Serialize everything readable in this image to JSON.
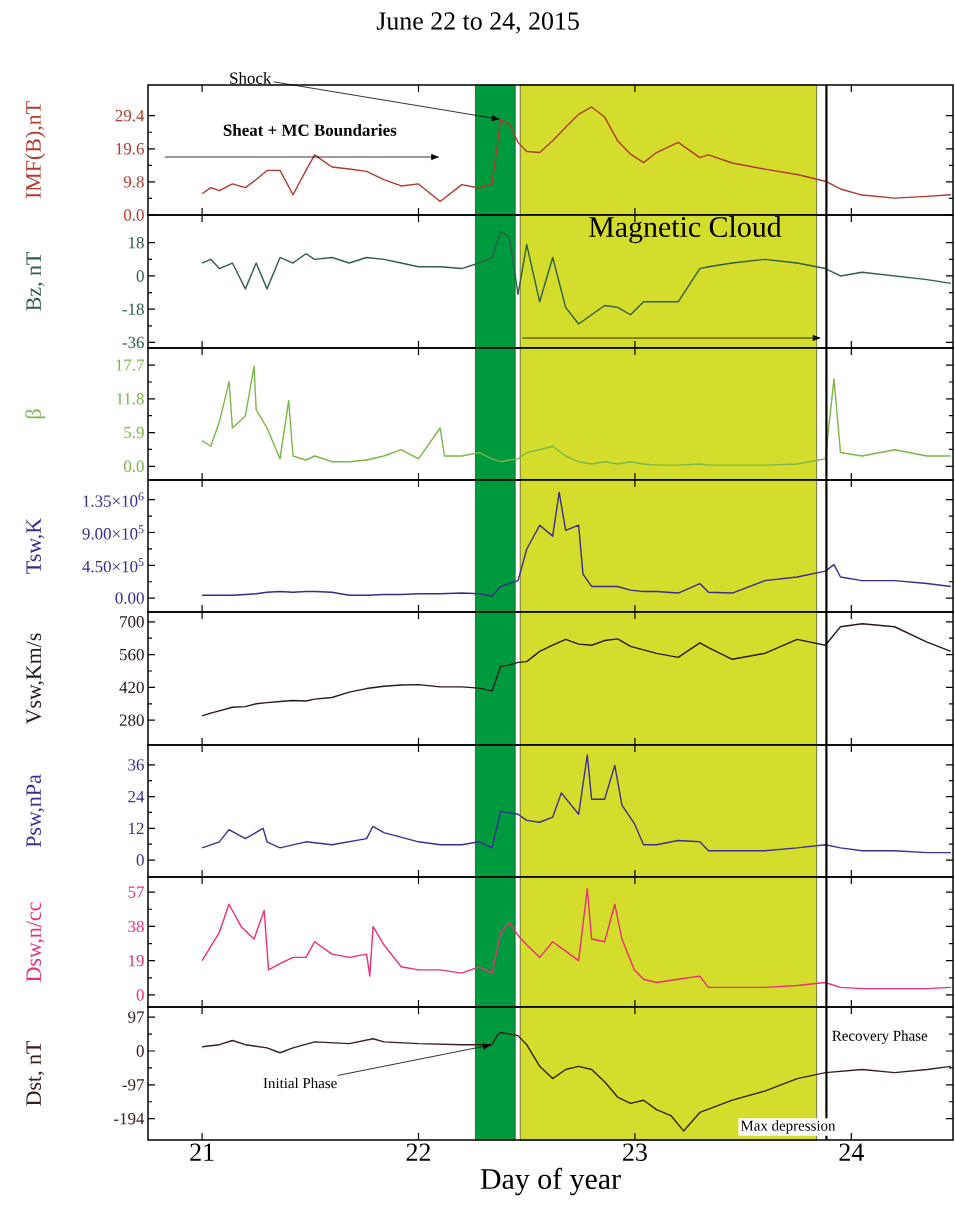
{
  "chart_data": [
    {
      "type": "line",
      "title": "June 22 to 24, 2015",
      "ylabel": "IMF(B),nT",
      "xlim": [
        20.75,
        24.47
      ],
      "xticks": [
        21,
        22,
        23,
        24
      ],
      "ylim": [
        0,
        38.5
      ],
      "yticks": [
        {
          "value": 0,
          "label": "0.0"
        },
        9.8,
        19.6,
        29.4
      ],
      "tick_labels": "y",
      "x": [
        21.0,
        21.04,
        21.08,
        21.14,
        21.2,
        21.25,
        21.3,
        21.36,
        21.42,
        21.48,
        21.52,
        21.6,
        21.68,
        21.76,
        21.84,
        21.92,
        22.0,
        22.1,
        22.2,
        22.28,
        22.34,
        22.38,
        22.42,
        22.46,
        22.5,
        22.56,
        22.62,
        22.68,
        22.74,
        22.8,
        22.86,
        22.92,
        22.98,
        23.04,
        23.1,
        23.2,
        23.3,
        23.34,
        23.45,
        23.6,
        23.75,
        23.88,
        23.95,
        24.05,
        24.2,
        24.35,
        24.46
      ],
      "series": [
        {
          "color": "#b03a2e",
          "values": [
            6.3,
            8.1,
            7.2,
            9.2,
            8.1,
            10.5,
            13.2,
            13.2,
            6.0,
            13.2,
            17.8,
            14.2,
            13.6,
            12.9,
            10.5,
            8.6,
            9.2,
            4.0,
            9.0,
            8.0,
            9.2,
            28.3,
            27.0,
            21.5,
            18.8,
            18.5,
            22.0,
            26.0,
            29.8,
            32.0,
            29.0,
            22.0,
            18.0,
            15.5,
            18.5,
            21.5,
            17.0,
            17.8,
            15.4,
            13.6,
            12.0,
            10.0,
            7.7,
            5.9,
            5.0,
            5.5,
            6.0
          ]
        }
      ],
      "bands": [
        {
          "axis": "x",
          "from": 22.263,
          "to": 22.447,
          "color": "#009a3e"
        },
        {
          "axis": "x",
          "from": 22.47,
          "to": 23.84,
          "color": "#d4dc2c"
        }
      ],
      "ref_lines": [
        {
          "axis": "x",
          "value": 23.885,
          "color": "#000000"
        }
      ],
      "annotations": [
        {
          "text": "Shock",
          "x": 22.38,
          "y": 28.3
        },
        "Sheat + MC Boundaries"
      ]
    },
    {
      "type": "line",
      "ylabel": "Bz, nT",
      "xlim": [
        20.75,
        24.47
      ],
      "xticks": [
        21,
        22,
        23,
        24
      ],
      "ylim": [
        -39,
        33
      ],
      "yticks": [
        -36,
        -18,
        0,
        18
      ],
      "tick_labels": "y",
      "x": [
        21.0,
        21.04,
        21.08,
        21.14,
        21.2,
        21.25,
        21.3,
        21.36,
        21.42,
        21.48,
        21.52,
        21.6,
        21.68,
        21.76,
        21.84,
        21.92,
        22.0,
        22.1,
        22.2,
        22.28,
        22.34,
        22.38,
        22.42,
        22.46,
        22.5,
        22.56,
        22.62,
        22.68,
        22.74,
        22.8,
        22.86,
        22.92,
        22.98,
        23.04,
        23.1,
        23.2,
        23.3,
        23.34,
        23.45,
        23.6,
        23.75,
        23.88,
        23.95,
        24.05,
        24.2,
        24.35,
        24.46
      ],
      "series": [
        {
          "color": "#2e5e45",
          "values": [
            7,
            9,
            4,
            7,
            -7,
            7,
            -7,
            10,
            7,
            12,
            9,
            10,
            7,
            10,
            9,
            7,
            5,
            5,
            4,
            7,
            10,
            24,
            21,
            -10,
            17,
            -14,
            10,
            -17,
            -26,
            -21,
            -16,
            -17,
            -21,
            -14,
            -14,
            -14,
            4,
            5,
            7,
            9,
            7,
            4,
            0,
            2,
            0,
            -2,
            -4
          ]
        }
      ],
      "bands": [
        {
          "axis": "x",
          "from": 22.263,
          "to": 22.447,
          "color": "#009a3e"
        },
        {
          "axis": "x",
          "from": 22.47,
          "to": 23.84,
          "color": "#d4dc2c"
        }
      ],
      "ref_lines": [
        {
          "axis": "x",
          "value": 23.885,
          "color": "#000000"
        }
      ],
      "annotations": [
        "Magnetic Cloud"
      ]
    },
    {
      "type": "line",
      "ylabel": "β",
      "xlim": [
        20.75,
        24.47
      ],
      "xticks": [
        21,
        22,
        23,
        24
      ],
      "ylim": [
        -2.4,
        20.7
      ],
      "yticks": [
        {
          "value": 0,
          "label": "0.0"
        },
        5.9,
        11.8,
        17.7
      ],
      "tick_labels": "y",
      "x": [
        21.0,
        21.04,
        21.08,
        21.125,
        21.14,
        21.2,
        21.24,
        21.25,
        21.3,
        21.36,
        21.4,
        21.42,
        21.48,
        21.52,
        21.6,
        21.68,
        21.76,
        21.84,
        21.92,
        22.0,
        22.1,
        22.12,
        22.2,
        22.28,
        22.34,
        22.38,
        22.42,
        22.46,
        22.5,
        22.56,
        22.62,
        22.68,
        22.74,
        22.8,
        22.86,
        22.92,
        22.98,
        23.04,
        23.1,
        23.2,
        23.3,
        23.34,
        23.45,
        23.6,
        23.75,
        23.88,
        23.92,
        23.95,
        24.05,
        24.2,
        24.35,
        24.46
      ],
      "series": [
        {
          "color": "#7ab648",
          "values": [
            4.5,
            3.5,
            7.8,
            14.8,
            6.7,
            8.8,
            17.5,
            9.9,
            6.7,
            1.3,
            11.5,
            1.8,
            1.1,
            1.8,
            0.8,
            0.8,
            1.1,
            1.8,
            2.9,
            1.3,
            6.7,
            1.8,
            1.8,
            2.4,
            1.3,
            0.8,
            1.1,
            1.3,
            2.4,
            2.9,
            3.5,
            1.8,
            0.8,
            0.4,
            0.8,
            0.4,
            0.8,
            0.4,
            0.2,
            0.2,
            0.4,
            0.2,
            0.2,
            0.2,
            0.4,
            1.3,
            15.3,
            2.4,
            1.8,
            2.9,
            1.8,
            1.8
          ]
        }
      ],
      "bands": [
        {
          "axis": "x",
          "from": 22.263,
          "to": 22.447,
          "color": "#009a3e"
        },
        {
          "axis": "x",
          "from": 22.47,
          "to": 23.84,
          "color": "#d4dc2c"
        }
      ],
      "ref_lines": [
        {
          "axis": "x",
          "value": 23.885,
          "color": "#000000"
        }
      ]
    },
    {
      "type": "line",
      "ylabel": "Tsw,K",
      "xlim": [
        20.75,
        24.47
      ],
      "xticks": [
        21,
        22,
        23,
        24
      ],
      "ylim": [
        -190000,
        1620000
      ],
      "yticks": [
        {
          "value": 0,
          "label": "0.00"
        },
        {
          "value": 450000,
          "label": "4.50×10$^{5}$"
        },
        {
          "value": 900000,
          "label": "9.00×10$^{5}$"
        },
        {
          "value": 1350000,
          "label": "1.35×10$^{6}$"
        }
      ],
      "tick_labels": "y",
      "x": [
        21.0,
        21.04,
        21.08,
        21.14,
        21.2,
        21.25,
        21.3,
        21.36,
        21.42,
        21.48,
        21.52,
        21.6,
        21.68,
        21.76,
        21.84,
        21.92,
        22.0,
        22.1,
        22.2,
        22.28,
        22.34,
        22.38,
        22.42,
        22.46,
        22.5,
        22.56,
        22.62,
        22.65,
        22.68,
        22.74,
        22.76,
        22.8,
        22.86,
        22.92,
        22.98,
        23.04,
        23.1,
        23.2,
        23.3,
        23.34,
        23.45,
        23.6,
        23.75,
        23.88,
        23.92,
        23.95,
        24.05,
        24.2,
        24.35,
        24.46
      ],
      "series": [
        {
          "color": "#3b2a8c",
          "values": [
            40000,
            40000,
            40000,
            40000,
            50000,
            60000,
            80000,
            90000,
            80000,
            90000,
            90000,
            80000,
            40000,
            40000,
            50000,
            50000,
            60000,
            60000,
            70000,
            60000,
            30000,
            160000,
            200000,
            240000,
            670000,
            1000000,
            850000,
            1450000,
            930000,
            1000000,
            330000,
            160000,
            160000,
            160000,
            110000,
            90000,
            90000,
            70000,
            200000,
            80000,
            70000,
            240000,
            290000,
            370000,
            460000,
            290000,
            240000,
            240000,
            200000,
            160000
          ]
        }
      ],
      "bands": [
        {
          "axis": "x",
          "from": 22.263,
          "to": 22.447,
          "color": "#009a3e"
        },
        {
          "axis": "x",
          "from": 22.47,
          "to": 23.84,
          "color": "#d4dc2c"
        }
      ],
      "ref_lines": [
        {
          "axis": "x",
          "value": 23.885,
          "color": "#000000"
        }
      ]
    },
    {
      "type": "line",
      "ylabel": "Vsw,Km/s",
      "xlim": [
        20.75,
        24.47
      ],
      "xticks": [
        21,
        22,
        23,
        24
      ],
      "ylim": [
        174,
        742
      ],
      "yticks": [
        280,
        420,
        560,
        700
      ],
      "tick_labels": "y",
      "x": [
        21.0,
        21.04,
        21.08,
        21.14,
        21.2,
        21.25,
        21.3,
        21.36,
        21.42,
        21.48,
        21.52,
        21.6,
        21.68,
        21.76,
        21.84,
        21.92,
        22.0,
        22.1,
        22.2,
        22.28,
        22.34,
        22.38,
        22.42,
        22.46,
        22.5,
        22.56,
        22.62,
        22.68,
        22.74,
        22.8,
        22.86,
        22.92,
        22.98,
        23.04,
        23.1,
        23.2,
        23.3,
        23.34,
        23.45,
        23.6,
        23.75,
        23.88,
        23.95,
        24.05,
        24.2,
        24.35,
        24.46
      ],
      "series": [
        {
          "color": "#2b1a1a",
          "values": [
            298,
            310,
            320,
            335,
            338,
            350,
            355,
            360,
            364,
            362,
            370,
            377,
            400,
            415,
            425,
            430,
            432,
            422,
            422,
            417,
            405,
            510,
            515,
            527,
            530,
            574,
            600,
            625,
            605,
            600,
            620,
            627,
            595,
            580,
            565,
            548,
            610,
            590,
            540,
            565,
            625,
            600,
            679,
            692,
            679,
            613,
            574
          ]
        }
      ],
      "bands": [
        {
          "axis": "x",
          "from": 22.263,
          "to": 22.447,
          "color": "#009a3e"
        },
        {
          "axis": "x",
          "from": 22.47,
          "to": 23.84,
          "color": "#d4dc2c"
        }
      ],
      "ref_lines": [
        {
          "axis": "x",
          "value": 23.885,
          "color": "#000000"
        }
      ]
    },
    {
      "type": "line",
      "ylabel": "Psw,nPa",
      "xlim": [
        20.75,
        24.47
      ],
      "xticks": [
        21,
        22,
        23,
        24
      ],
      "ylim": [
        -6.4,
        43.5
      ],
      "yticks": [
        0,
        12,
        24,
        36
      ],
      "tick_labels": "y",
      "x": [
        21.0,
        21.08,
        21.124,
        21.2,
        21.282,
        21.3,
        21.36,
        21.48,
        21.6,
        21.76,
        21.789,
        21.84,
        22.0,
        22.1,
        22.2,
        22.28,
        22.34,
        22.38,
        22.46,
        22.5,
        22.56,
        22.62,
        22.66,
        22.74,
        22.78,
        22.8,
        22.86,
        22.907,
        22.94,
        22.997,
        23.04,
        23.1,
        23.2,
        23.3,
        23.34,
        23.45,
        23.6,
        23.75,
        23.88,
        23.95,
        24.05,
        24.2,
        24.35,
        24.46
      ],
      "series": [
        {
          "color": "#3c2f8f",
          "values": [
            4.6,
            6.9,
            11.5,
            8.1,
            12,
            6.9,
            4.6,
            6.9,
            5.8,
            8.1,
            12.7,
            10.4,
            6.9,
            5.8,
            5.8,
            6.9,
            4.6,
            18.5,
            17.3,
            15,
            14.3,
            16.2,
            25.4,
            17.3,
            39.7,
            23,
            23,
            35.8,
            20.8,
            13.9,
            5.8,
            5.8,
            7.4,
            6.9,
            3.5,
            3.5,
            3.5,
            4.6,
            5.8,
            4.6,
            3.5,
            3.5,
            2.8,
            2.8
          ]
        }
      ],
      "bands": [
        {
          "axis": "x",
          "from": 22.263,
          "to": 22.447,
          "color": "#009a3e"
        },
        {
          "axis": "x",
          "from": 22.47,
          "to": 23.84,
          "color": "#d4dc2c"
        }
      ],
      "ref_lines": [
        {
          "axis": "x",
          "value": 23.885,
          "color": "#000000"
        }
      ]
    },
    {
      "type": "line",
      "ylabel": "Dsw,n/cc",
      "xlim": [
        20.75,
        24.47
      ],
      "xticks": [
        21,
        22,
        23,
        24
      ],
      "ylim": [
        -6.7,
        65.4
      ],
      "yticks": [
        0,
        19,
        38,
        57
      ],
      "tick_labels": "y",
      "x": [
        21.0,
        21.08,
        21.124,
        21.18,
        21.24,
        21.287,
        21.307,
        21.36,
        21.42,
        21.48,
        21.52,
        21.6,
        21.68,
        21.76,
        21.775,
        21.79,
        21.84,
        21.92,
        22.0,
        22.1,
        22.2,
        22.28,
        22.34,
        22.38,
        22.42,
        22.46,
        22.5,
        22.56,
        22.62,
        22.68,
        22.74,
        22.78,
        22.8,
        22.86,
        22.907,
        22.94,
        22.997,
        23.04,
        23.1,
        23.2,
        23.3,
        23.34,
        23.45,
        23.6,
        23.75,
        23.88,
        23.95,
        24.05,
        24.2,
        24.35,
        24.46
      ],
      "series": [
        {
          "color": "#e8307a",
          "values": [
            19,
            34.7,
            50.3,
            38,
            31,
            46.8,
            13.9,
            17.3,
            20.8,
            20.8,
            29.5,
            22.6,
            20.8,
            22.6,
            10.4,
            38,
            27.8,
            15.6,
            13.9,
            13.9,
            12.1,
            15.6,
            12.1,
            34.7,
            40,
            33,
            27.8,
            20.8,
            29.5,
            24.3,
            19,
            59,
            31,
            29.5,
            50.3,
            31,
            13.9,
            8.7,
            6.9,
            8.7,
            10.4,
            4.2,
            4.2,
            4.2,
            5.2,
            6.9,
            4.2,
            3.5,
            3.5,
            3.5,
            4.2
          ]
        }
      ],
      "bands": [
        {
          "axis": "x",
          "from": 22.263,
          "to": 22.447,
          "color": "#009a3e"
        },
        {
          "axis": "x",
          "from": 22.47,
          "to": 23.84,
          "color": "#d4dc2c"
        }
      ],
      "ref_lines": [
        {
          "axis": "x",
          "value": 23.885,
          "color": "#000000"
        }
      ]
    },
    {
      "type": "line",
      "ylabel": "Dst, nT",
      "xlabel": "Day of year",
      "xlim": [
        20.75,
        24.47
      ],
      "xticks": [
        21,
        22,
        23,
        24
      ],
      "ylim": [
        -255,
        126
      ],
      "yticks": [
        -194,
        -97,
        0,
        97
      ],
      "x": [
        21.0,
        21.08,
        21.14,
        21.2,
        21.3,
        21.36,
        21.42,
        21.52,
        21.68,
        21.79,
        21.84,
        22.0,
        22.2,
        22.34,
        22.363,
        22.38,
        22.46,
        22.5,
        22.56,
        22.62,
        22.68,
        22.74,
        22.8,
        22.86,
        22.92,
        22.98,
        23.04,
        23.1,
        23.166,
        23.225,
        23.3,
        23.45,
        23.6,
        23.75,
        23.88,
        24.05,
        24.2,
        24.35,
        24.46
      ],
      "series": [
        {
          "color": "#3a1f1f",
          "values": [
            12,
            18,
            30,
            18,
            9,
            -5,
            9,
            26,
            21,
            35,
            26,
            21,
            18,
            18,
            44,
            53,
            44,
            18,
            -44,
            -79,
            -53,
            -44,
            -53,
            -88,
            -132,
            -150,
            -141,
            -168,
            -185,
            -229,
            -176,
            -141,
            -115,
            -79,
            -62,
            -53,
            -62,
            -53,
            -44
          ]
        }
      ],
      "bands": [
        {
          "axis": "x",
          "from": 22.263,
          "to": 22.447,
          "color": "#009a3e"
        },
        {
          "axis": "x",
          "from": 22.47,
          "to": 23.84,
          "color": "#d4dc2c"
        }
      ],
      "ref_lines": [
        {
          "axis": "x",
          "value": 23.885,
          "color": "#000000"
        }
      ],
      "annotations": [
        {
          "text": "Initial Phase",
          "x": 22.34,
          "y": 18
        },
        "Recovery Phase",
        "Max depression"
      ]
    }
  ]
}
